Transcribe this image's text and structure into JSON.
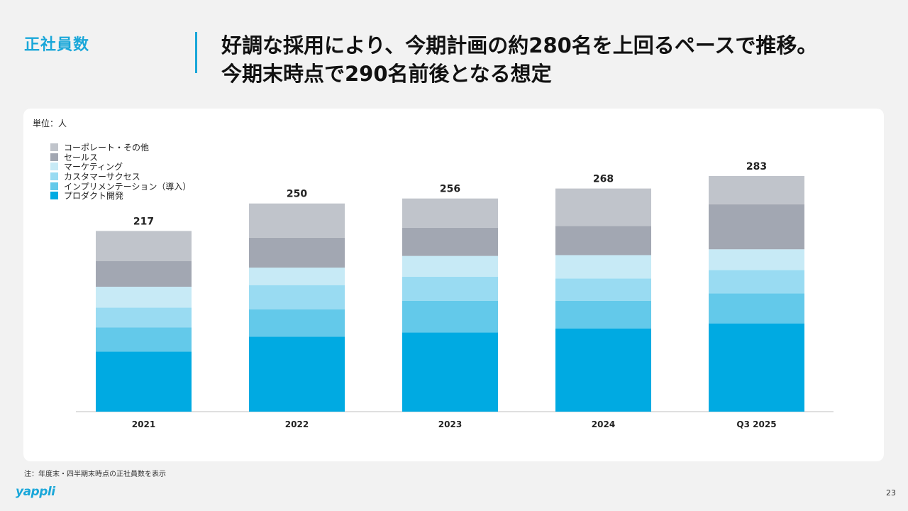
{
  "header": {
    "section_label": "正社員数",
    "headline_line1": "好調な採用により、今期計画の約280名を上回るペースで推移。",
    "headline_line2": "今期末時点で290名前後となる想定"
  },
  "chart_data": {
    "type": "bar",
    "stacked": true,
    "unit_label": "単位：人",
    "categories": [
      "2021",
      "2022",
      "2023",
      "2024",
      "Q3 2025"
    ],
    "totals": [
      217,
      250,
      256,
      268,
      283
    ],
    "ylim": [
      0,
      283
    ],
    "series": [
      {
        "name": "プロダクト開発",
        "color": "#00aae2",
        "values": [
          72,
          90,
          95,
          100,
          106
        ]
      },
      {
        "name": "インプリメンテーション（導入）",
        "color": "#63c9ea",
        "values": [
          29,
          33,
          38,
          33,
          36
        ]
      },
      {
        "name": "カスタマーサクセス",
        "color": "#99dbf2",
        "values": [
          24,
          29,
          29,
          27,
          28
        ]
      },
      {
        "name": "マーケティング",
        "color": "#c7eaf6",
        "values": [
          25,
          21,
          25,
          28,
          25
        ]
      },
      {
        "name": "セールス",
        "color": "#a2a7b2",
        "values": [
          31,
          36,
          34,
          35,
          54
        ]
      },
      {
        "name": "コーポレート・その他",
        "color": "#c0c4cb",
        "values": [
          36,
          41,
          35,
          45,
          34
        ]
      }
    ],
    "legend_position": "top-left",
    "grid": false
  },
  "footer": {
    "note": "注：年度末・四半期末時点の正社員数を表示",
    "logo_text": "yappli",
    "page_number": "23"
  }
}
